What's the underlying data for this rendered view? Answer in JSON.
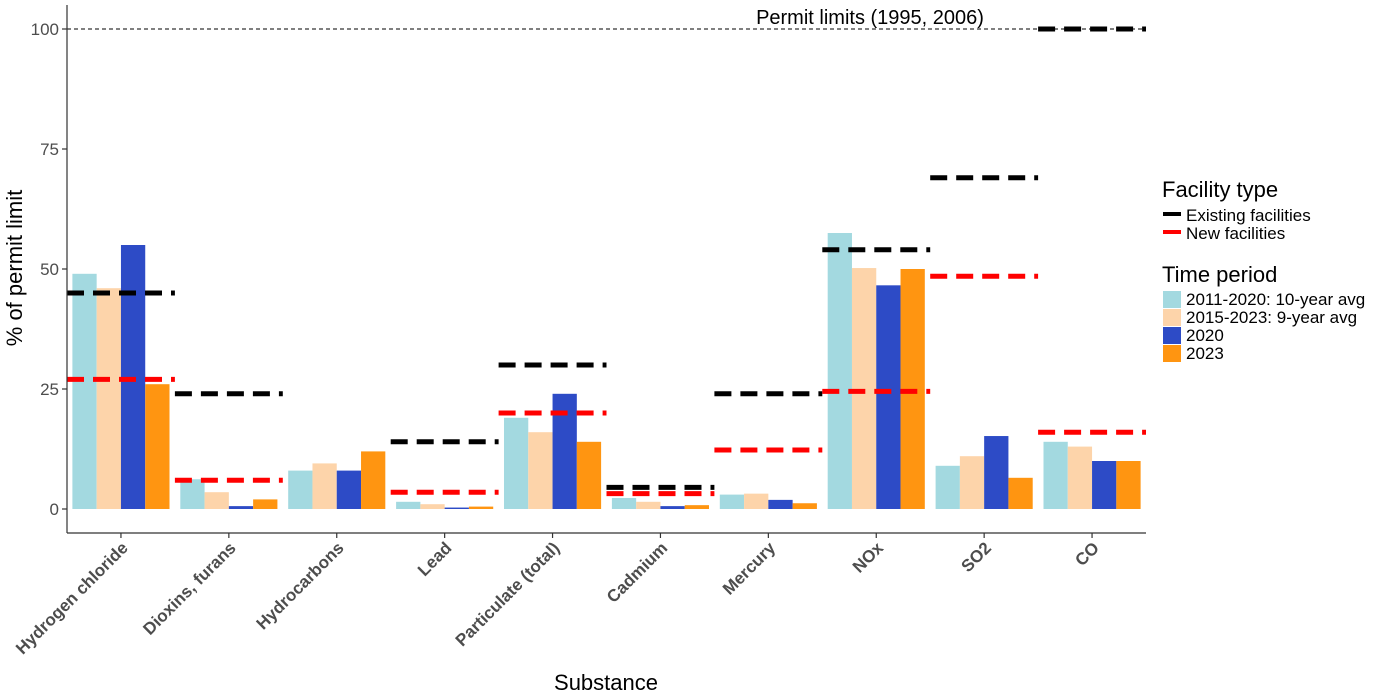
{
  "chart_data": {
    "type": "bar",
    "xlabel": "Substance",
    "ylabel": "% of permit limit",
    "ylim": [
      -5,
      105
    ],
    "yticks": [
      0,
      25,
      50,
      75,
      100
    ],
    "categories": [
      "Hydrogen chloride",
      "Dioxins, furans",
      "Hydrocarbons",
      "Lead",
      "Particulate (total)",
      "Cadmium",
      "Mercury",
      "NOx",
      "SO2",
      "CO"
    ],
    "series": [
      {
        "name": "2011-2020: 10-year avg",
        "color": "#A3D9E0",
        "values": [
          49,
          6.2,
          8,
          1.5,
          19,
          2.3,
          3,
          57.5,
          9,
          14
        ]
      },
      {
        "name": "2015-2023: 9-year avg",
        "color": "#FDD4AA",
        "values": [
          46,
          3.5,
          9.5,
          1,
          16,
          1.5,
          3.2,
          50.2,
          11,
          13
        ]
      },
      {
        "name": "2020",
        "color": "#2D4BC6",
        "values": [
          55,
          0.6,
          8,
          0.3,
          24,
          0.6,
          1.9,
          46.6,
          15.2,
          10
        ]
      },
      {
        "name": "2023",
        "color": "#FF9511",
        "values": [
          26,
          2,
          12,
          0.5,
          14,
          0.8,
          1.2,
          50,
          6.5,
          10
        ]
      }
    ],
    "limit_lines": [
      {
        "name": "Existing facilities",
        "color": "#000000",
        "values": [
          45,
          24,
          null,
          14,
          30,
          4.5,
          24,
          54,
          69,
          100
        ]
      },
      {
        "name": "New facilities",
        "color": "#FF0000",
        "values": [
          27,
          6,
          null,
          3.5,
          20,
          3.2,
          12.3,
          24.5,
          48.5,
          16
        ]
      }
    ],
    "reference_line": {
      "value": 100,
      "label": "Permit limits (1995, 2006)"
    },
    "legend": {
      "position": "right",
      "facility_title": "Facility type",
      "time_title": "Time period"
    },
    "grid": false
  }
}
